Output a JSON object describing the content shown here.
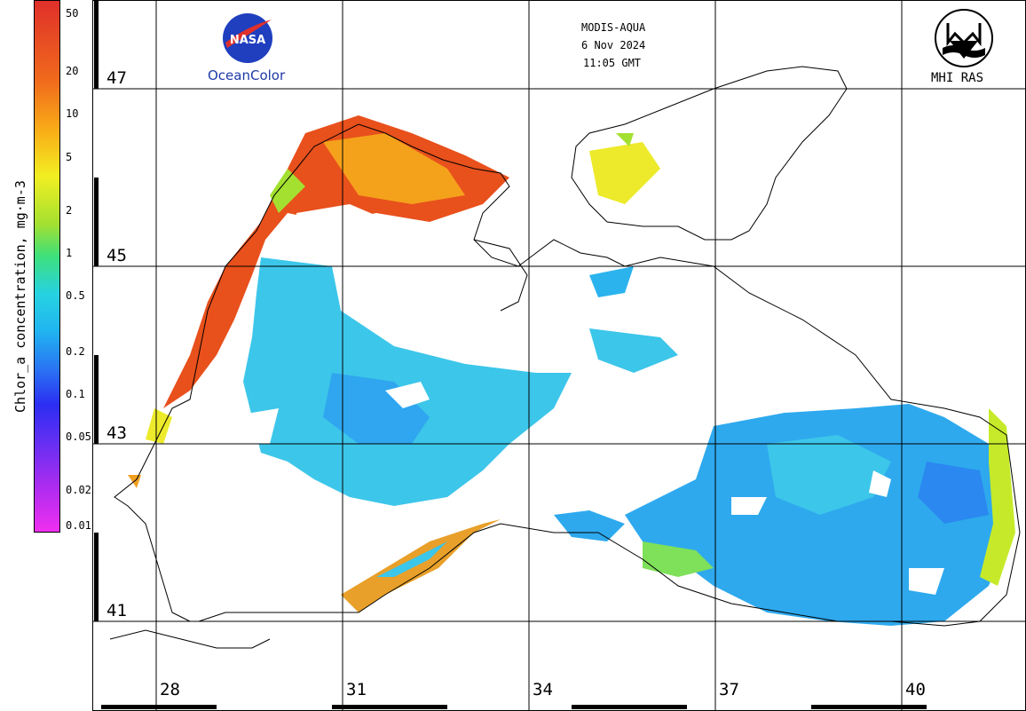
{
  "colorbar": {
    "title": "Chlor_a concentration, mg·m-3",
    "ticks": [
      "50",
      "20",
      "10",
      "5",
      "2",
      "1",
      "0.5",
      "0.2",
      "0.1",
      "0.05",
      "0.02",
      "0.01"
    ]
  },
  "header": {
    "instrument": "MODIS-AQUA",
    "date": "6 Nov 2024",
    "time": "11:05 GMT"
  },
  "logos": {
    "nasa_text": "NASA",
    "ocean_color": "OceanColor",
    "mhi": "MHI RAS"
  },
  "grid": {
    "lat_labels": [
      "47",
      "45",
      "43",
      "41"
    ],
    "lon_labels": [
      "28",
      "31",
      "34",
      "37",
      "40"
    ]
  },
  "colors": {
    "high": "#e0302a",
    "mid": "#f2ef22",
    "low": "#27d3e0",
    "very_low": "#2b2ef2"
  }
}
